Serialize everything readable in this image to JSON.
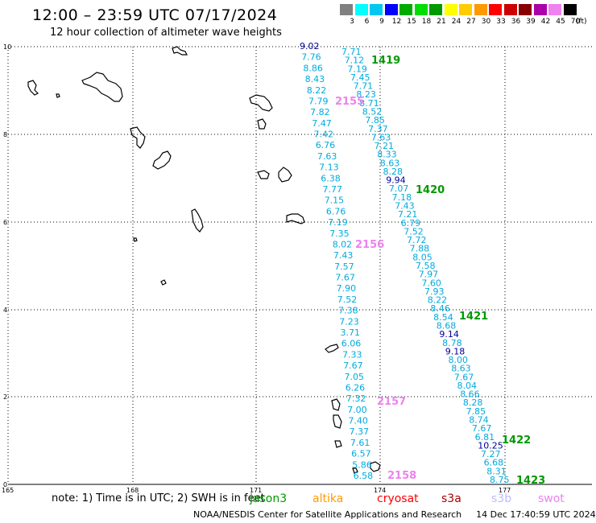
{
  "header": {
    "title": "12:00 – 23:59 UTC 07/17/2024",
    "subtitle": "12 hour collection of altimeter wave heights"
  },
  "legend": {
    "labels": [
      "3",
      "6",
      "9",
      "12",
      "15",
      "18",
      "21",
      "24",
      "27",
      "30",
      "33",
      "36",
      "39",
      "42",
      "45",
      "70"
    ],
    "colors": [
      "#808080",
      "#00ffff",
      "#00c8f0",
      "#0000ff",
      "#00aa00",
      "#00dd00",
      "#009900",
      "#ffff00",
      "#ffcc00",
      "#ff9900",
      "#ff0000",
      "#cc0000",
      "#880000",
      "#aa00aa",
      "#ee82ee",
      "#000000"
    ],
    "unit": "(ft)"
  },
  "axes": {
    "x_ticks": [
      "165",
      "168",
      "171",
      "174",
      "177"
    ],
    "y_ticks": [
      "0",
      "2",
      "4",
      "6",
      "8",
      "10"
    ]
  },
  "wave_points": [
    {
      "v": "9.02",
      "c": "#000099"
    },
    {
      "v": "7.76",
      "c": "#00aadd"
    },
    {
      "v": "8.86",
      "c": "#00aadd"
    },
    {
      "v": "8.43",
      "c": "#00aadd"
    },
    {
      "v": "8.22",
      "c": "#00aadd"
    },
    {
      "v": "7.79",
      "c": "#00aadd"
    },
    {
      "v": "7.82",
      "c": "#00aadd"
    },
    {
      "v": "7.47",
      "c": "#00aadd"
    },
    {
      "v": "7.42",
      "c": "#00aadd"
    },
    {
      "v": "6.76",
      "c": "#00aadd"
    },
    {
      "v": "7.63",
      "c": "#00aadd"
    },
    {
      "v": "7.13",
      "c": "#00aadd"
    },
    {
      "v": "6.38",
      "c": "#00aadd"
    },
    {
      "v": "7.77",
      "c": "#00aadd"
    },
    {
      "v": "7.15",
      "c": "#00aadd"
    },
    {
      "v": "6.76",
      "c": "#00aadd"
    },
    {
      "v": "7.19",
      "c": "#00aadd"
    },
    {
      "v": "7.35",
      "c": "#00aadd"
    },
    {
      "v": "8.02",
      "c": "#00aadd"
    },
    {
      "v": "7.43",
      "c": "#00aadd"
    },
    {
      "v": "7.57",
      "c": "#00aadd"
    },
    {
      "v": "7.67",
      "c": "#00aadd"
    },
    {
      "v": "7.90",
      "c": "#00aadd"
    },
    {
      "v": "7.52",
      "c": "#00aadd"
    },
    {
      "v": "7.38",
      "c": "#00aadd"
    },
    {
      "v": "7.23",
      "c": "#00aadd"
    },
    {
      "v": "3.71",
      "c": "#00aadd"
    },
    {
      "v": "6.06",
      "c": "#00aadd"
    },
    {
      "v": "7.33",
      "c": "#00aadd"
    },
    {
      "v": "7.67",
      "c": "#00aadd"
    },
    {
      "v": "7.05",
      "c": "#00aadd"
    },
    {
      "v": "6.26",
      "c": "#00aadd"
    },
    {
      "v": "7.32",
      "c": "#00aadd"
    },
    {
      "v": "7.00",
      "c": "#00aadd"
    },
    {
      "v": "7.40",
      "c": "#00aadd"
    },
    {
      "v": "7.37",
      "c": "#00aadd"
    },
    {
      "v": "7.61",
      "c": "#00aadd"
    },
    {
      "v": "6.57",
      "c": "#00aadd"
    },
    {
      "v": "5.86",
      "c": "#00aadd"
    },
    {
      "v": "6.58",
      "c": "#00aadd"
    },
    {
      "v": "7.71",
      "c": "#00aadd"
    },
    {
      "v": "7.12",
      "c": "#00aadd"
    },
    {
      "v": "7.19",
      "c": "#00aadd"
    },
    {
      "v": "7.45",
      "c": "#00aadd"
    },
    {
      "v": "7.71",
      "c": "#00aadd"
    },
    {
      "v": "8.23",
      "c": "#00aadd"
    },
    {
      "v": "8.71",
      "c": "#00aadd"
    },
    {
      "v": "8.52",
      "c": "#00aadd"
    },
    {
      "v": "7.85",
      "c": "#00aadd"
    },
    {
      "v": "7.37",
      "c": "#00aadd"
    },
    {
      "v": "7.63",
      "c": "#00aadd"
    },
    {
      "v": "7.21",
      "c": "#00aadd"
    },
    {
      "v": "8.33",
      "c": "#00aadd"
    },
    {
      "v": "8.63",
      "c": "#00aadd"
    },
    {
      "v": "8.28",
      "c": "#00aadd"
    },
    {
      "v": "9.94",
      "c": "#000099"
    },
    {
      "v": "7.07",
      "c": "#00aadd"
    },
    {
      "v": "7.18",
      "c": "#00aadd"
    },
    {
      "v": "7.43",
      "c": "#00aadd"
    },
    {
      "v": "7.21",
      "c": "#00aadd"
    },
    {
      "v": "6.79",
      "c": "#00aadd"
    },
    {
      "v": "7.52",
      "c": "#00aadd"
    },
    {
      "v": "7.72",
      "c": "#00aadd"
    },
    {
      "v": "7.88",
      "c": "#00aadd"
    },
    {
      "v": "8.05",
      "c": "#00aadd"
    },
    {
      "v": "7.58",
      "c": "#00aadd"
    },
    {
      "v": "7.97",
      "c": "#00aadd"
    },
    {
      "v": "7.60",
      "c": "#00aadd"
    },
    {
      "v": "7.93",
      "c": "#00aadd"
    },
    {
      "v": "8.22",
      "c": "#00aadd"
    },
    {
      "v": "8.46",
      "c": "#00aadd"
    },
    {
      "v": "8.54",
      "c": "#00aadd"
    },
    {
      "v": "8.68",
      "c": "#00aadd"
    },
    {
      "v": "9.14",
      "c": "#000099"
    },
    {
      "v": "8.78",
      "c": "#00aadd"
    },
    {
      "v": "9.18",
      "c": "#000099"
    },
    {
      "v": "8.00",
      "c": "#00aadd"
    },
    {
      "v": "8.63",
      "c": "#00aadd"
    },
    {
      "v": "7.67",
      "c": "#00aadd"
    },
    {
      "v": "8.04",
      "c": "#00aadd"
    },
    {
      "v": "8.66",
      "c": "#00aadd"
    },
    {
      "v": "8.28",
      "c": "#00aadd"
    },
    {
      "v": "7.85",
      "c": "#00aadd"
    },
    {
      "v": "8.74",
      "c": "#00aadd"
    },
    {
      "v": "7.67",
      "c": "#00aadd"
    },
    {
      "v": "6.81",
      "c": "#00aadd"
    },
    {
      "v": "10.25",
      "c": "#000099"
    },
    {
      "v": "7.27",
      "c": "#00aadd"
    },
    {
      "v": "6.68",
      "c": "#00aadd"
    },
    {
      "v": "8.31",
      "c": "#00aadd"
    },
    {
      "v": "8.75",
      "c": "#00aadd"
    }
  ],
  "pass_labels": [
    {
      "t": "1419",
      "c": "#009900"
    },
    {
      "t": "1420",
      "c": "#009900"
    },
    {
      "t": "1421",
      "c": "#009900"
    },
    {
      "t": "1422",
      "c": "#009900"
    },
    {
      "t": "1423",
      "c": "#009900"
    },
    {
      "t": "2155",
      "c": "#ee82ee"
    },
    {
      "t": "2156",
      "c": "#ee82ee"
    },
    {
      "t": "2157",
      "c": "#ee82ee"
    },
    {
      "t": "2158",
      "c": "#ee82ee"
    }
  ],
  "footer": {
    "note": "note:  1) Time is in UTC;  2) SWH is in feet",
    "satellites": [
      {
        "name": "jason3",
        "color": "#009900"
      },
      {
        "name": "altika",
        "color": "#ff9900"
      },
      {
        "name": "cryosat",
        "color": "#ff0000"
      },
      {
        "name": "s3a",
        "color": "#aa0000"
      },
      {
        "name": "s3b",
        "color": "#bbbbff"
      },
      {
        "name": "swot",
        "color": "#ee82ee"
      }
    ],
    "credit": "NOAA/NESDIS Center for Satellite Applications and Research",
    "timestamp": "14 Dec 17:40:59 UTC 2024"
  }
}
